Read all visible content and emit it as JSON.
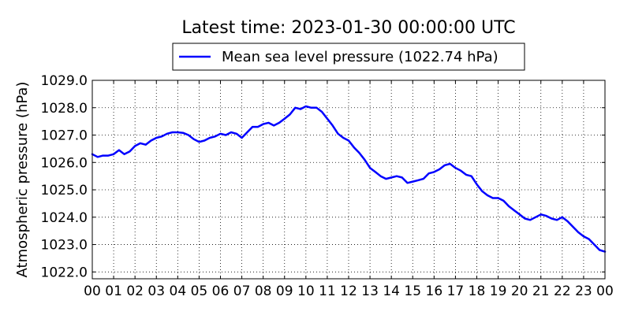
{
  "chart_data": {
    "type": "line",
    "title": "Latest time: 2023-01-30 00:00:00 UTC",
    "xlabel": "",
    "ylabel": "Atmospheric pressure (hPa)",
    "xlim": [
      0,
      24
    ],
    "ylim": [
      1021.75,
      1029.0
    ],
    "x_tick_labels": [
      "00",
      "01",
      "02",
      "03",
      "04",
      "05",
      "06",
      "07",
      "08",
      "09",
      "10",
      "11",
      "12",
      "13",
      "14",
      "15",
      "16",
      "17",
      "18",
      "19",
      "20",
      "21",
      "22",
      "23",
      "00"
    ],
    "y_ticks": [
      1022.0,
      1023.0,
      1024.0,
      1025.0,
      1026.0,
      1027.0,
      1028.0,
      1029.0
    ],
    "y_tick_labels": [
      "1022.0",
      "1023.0",
      "1024.0",
      "1025.0",
      "1026.0",
      "1027.0",
      "1028.0",
      "1029.0"
    ],
    "grid": true,
    "legend_position": "top-center (above plot)",
    "series": [
      {
        "name": "Mean sea level pressure (1022.74 hPa)",
        "color": "#0000ff",
        "x": [
          0,
          0.25,
          0.5,
          0.75,
          1,
          1.25,
          1.5,
          1.75,
          2,
          2.25,
          2.5,
          2.75,
          3,
          3.25,
          3.5,
          3.75,
          4,
          4.25,
          4.5,
          4.75,
          5,
          5.25,
          5.5,
          5.75,
          6,
          6.25,
          6.5,
          6.75,
          7,
          7.25,
          7.5,
          7.75,
          8,
          8.25,
          8.5,
          8.75,
          9,
          9.25,
          9.5,
          9.75,
          10,
          10.25,
          10.5,
          10.75,
          11,
          11.25,
          11.5,
          11.75,
          12,
          12.25,
          12.5,
          12.75,
          13,
          13.25,
          13.5,
          13.75,
          14,
          14.25,
          14.5,
          14.75,
          15,
          15.25,
          15.5,
          15.75,
          16,
          16.25,
          16.5,
          16.75,
          17,
          17.25,
          17.5,
          17.75,
          18,
          18.25,
          18.5,
          18.75,
          19,
          19.25,
          19.5,
          19.75,
          20,
          20.25,
          20.5,
          20.75,
          21,
          21.25,
          21.5,
          21.75,
          22,
          22.25,
          22.5,
          22.75,
          23,
          23.25,
          23.5,
          23.75,
          24
        ],
        "values": [
          1026.3,
          1026.2,
          1026.25,
          1026.25,
          1026.3,
          1026.45,
          1026.3,
          1026.4,
          1026.6,
          1026.7,
          1026.65,
          1026.8,
          1026.9,
          1026.95,
          1027.05,
          1027.1,
          1027.1,
          1027.08,
          1027.0,
          1026.85,
          1026.75,
          1026.8,
          1026.9,
          1026.95,
          1027.05,
          1027.0,
          1027.1,
          1027.05,
          1026.9,
          1027.1,
          1027.3,
          1027.3,
          1027.4,
          1027.45,
          1027.35,
          1027.45,
          1027.6,
          1027.75,
          1028.0,
          1027.95,
          1028.05,
          1028.0,
          1028.0,
          1027.85,
          1027.6,
          1027.35,
          1027.05,
          1026.9,
          1026.8,
          1026.55,
          1026.35,
          1026.1,
          1025.8,
          1025.65,
          1025.5,
          1025.4,
          1025.45,
          1025.5,
          1025.45,
          1025.25,
          1025.3,
          1025.35,
          1025.4,
          1025.6,
          1025.65,
          1025.75,
          1025.9,
          1025.95,
          1025.8,
          1025.7,
          1025.55,
          1025.5,
          1025.2,
          1024.95,
          1024.8,
          1024.7,
          1024.7,
          1024.6,
          1024.4,
          1024.25,
          1024.1,
          1023.95,
          1023.9,
          1024.0,
          1024.1,
          1024.05,
          1023.95,
          1023.9,
          1024.0,
          1023.85,
          1023.65,
          1023.45,
          1023.3,
          1023.2,
          1023.0,
          1022.8,
          1022.74
        ]
      }
    ]
  }
}
